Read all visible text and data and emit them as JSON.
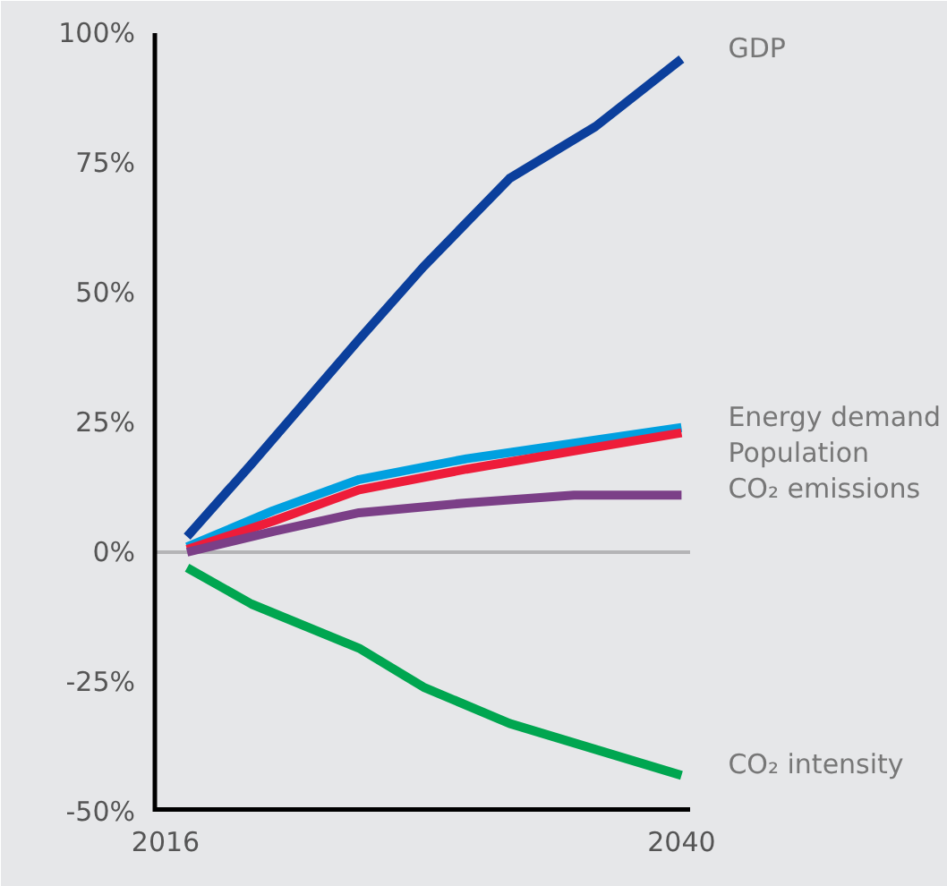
{
  "chart_data": {
    "type": "line",
    "xlim": [
      2015.5,
      2040.4
    ],
    "ylim": [
      -50,
      100
    ],
    "xticks": [
      2016,
      2040
    ],
    "yticks": [
      {
        "value": -50,
        "label": "-50%"
      },
      {
        "value": -25,
        "label": "-25%"
      },
      {
        "value": 0,
        "label": "0%"
      },
      {
        "value": 25,
        "label": "25%"
      },
      {
        "value": 50,
        "label": "50%"
      },
      {
        "value": 75,
        "label": "75%"
      },
      {
        "value": 100,
        "label": "100%"
      }
    ],
    "line_style": "solid",
    "marker": "none",
    "ref_lines": [
      {
        "axis": "y",
        "value": 0,
        "color": "#b4b4b6"
      }
    ],
    "series": [
      {
        "name": "GDP",
        "color": "#0b3f9c",
        "x": [
          2017,
          2020,
          2025,
          2028,
          2032,
          2036,
          2040
        ],
        "values": [
          3,
          17,
          41,
          55,
          72,
          82,
          95
        ]
      },
      {
        "name": "Energy demand",
        "color": "#00a0e0",
        "x": [
          2017,
          2021,
          2025,
          2030,
          2035,
          2040
        ],
        "values": [
          1,
          8,
          14,
          18,
          21,
          24
        ]
      },
      {
        "name": "Population",
        "color": "#ee1c3a",
        "x": [
          2017,
          2021,
          2025,
          2030,
          2035,
          2040
        ],
        "values": [
          0.5,
          6,
          12,
          16,
          19.5,
          23
        ]
      },
      {
        "name": "CO₂ emissions",
        "color": "#7b3f87",
        "x": [
          2017,
          2021,
          2025,
          2030,
          2035,
          2040
        ],
        "values": [
          0,
          4,
          7.6,
          9.5,
          11,
          11
        ]
      },
      {
        "name": "CO₂ intensity",
        "color": "#00a650",
        "x": [
          2017,
          2020,
          2025,
          2028,
          2032,
          2036,
          2040
        ],
        "values": [
          -3,
          -10,
          -18.5,
          -26,
          -33,
          -38,
          -43
        ]
      }
    ]
  }
}
